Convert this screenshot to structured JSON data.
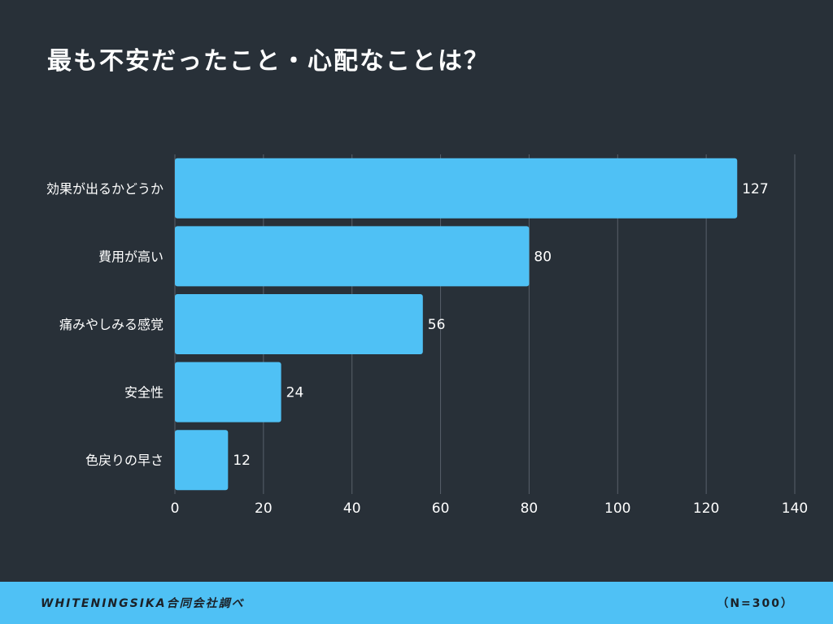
{
  "title": "最も不安だったこと・心配なことは？",
  "footer": {
    "credit": "WHITENINGSIKA合同会社調べ",
    "sample_size": "（N=300）"
  },
  "colors": {
    "background": "#283038",
    "bar": "#4fc1f5",
    "grid": "#58606a",
    "text": "#ffffff",
    "footer_background": "#4fc1f5",
    "footer_text": "#1b2128"
  },
  "chart_data": {
    "type": "bar",
    "orientation": "horizontal",
    "title": "最も不安だったこと・心配なことは？",
    "categories": [
      "効果が出るかどうか",
      "費用が高い",
      "痛みやしみる感覚",
      "安全性",
      "色戻りの早さ"
    ],
    "values": [
      127,
      80,
      56,
      24,
      12
    ],
    "xlabel": "",
    "ylabel": "",
    "xlim": [
      0,
      140
    ],
    "x_ticks": [
      0,
      20,
      40,
      60,
      80,
      100,
      120,
      140
    ],
    "grid": "vertical",
    "legend": "none",
    "data_labels": true
  }
}
